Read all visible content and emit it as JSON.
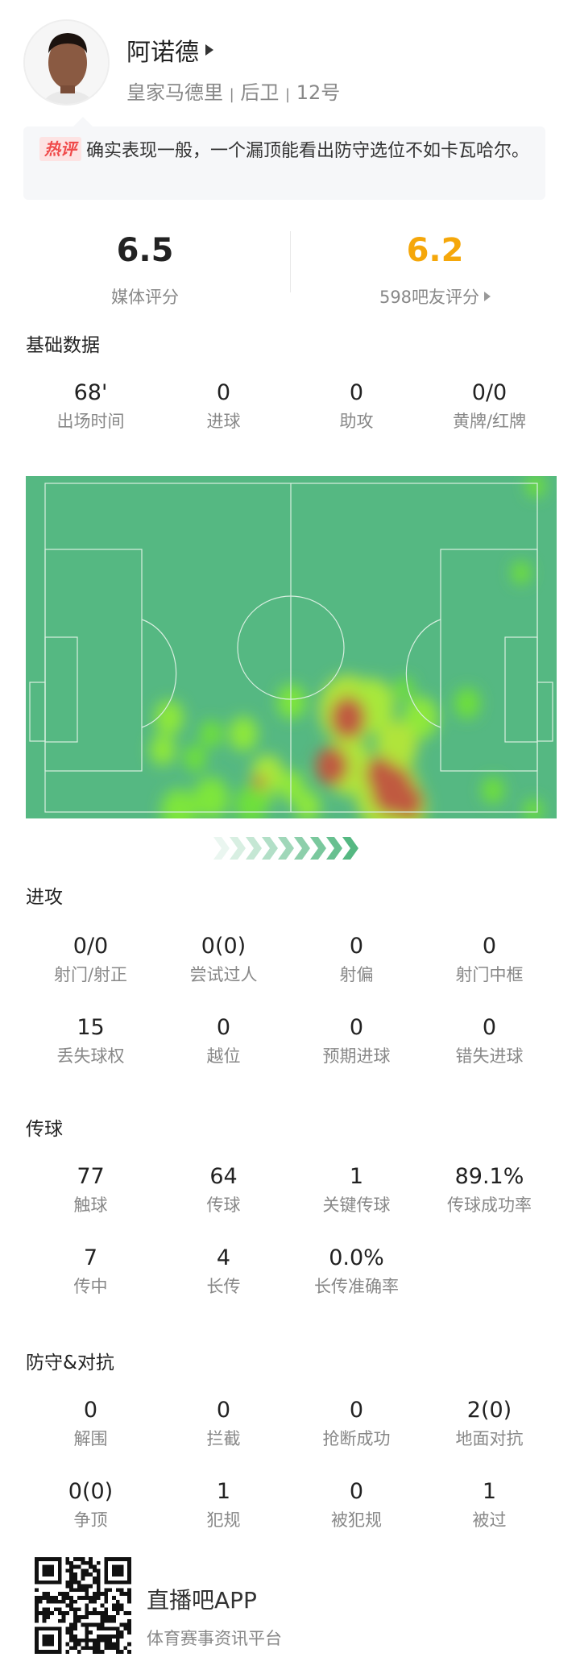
{
  "player": {
    "name": "阿诺德",
    "team": "皇家马德里",
    "position": "后卫",
    "number": "12号",
    "sep": "|"
  },
  "comment": {
    "badge": "热评",
    "text": "确实表现一般，一个漏顶能看出防守选位不如卡瓦哈尔。"
  },
  "ratings": {
    "media": {
      "value": "6.5",
      "label": "媒体评分"
    },
    "fans": {
      "value": "6.2",
      "label": "598吧友评分",
      "color": "#f5a70a"
    }
  },
  "basic": {
    "title": "基础数据",
    "items": [
      {
        "value": "68'",
        "label": "出场时间"
      },
      {
        "value": "0",
        "label": "进球"
      },
      {
        "value": "0",
        "label": "助攻"
      },
      {
        "value": "0/0",
        "label": "黄牌/红牌"
      }
    ]
  },
  "heatmap": {
    "pitch_color": "#55b882",
    "line_color": "#d8efe0",
    "direction": "attack-right-arrows"
  },
  "attack": {
    "title": "进攻",
    "items": [
      {
        "value": "0/0",
        "label": "射门/射正"
      },
      {
        "value": "0(0)",
        "label": "尝试过人"
      },
      {
        "value": "0",
        "label": "射偏"
      },
      {
        "value": "0",
        "label": "射门中框"
      },
      {
        "value": "15",
        "label": "丢失球权"
      },
      {
        "value": "0",
        "label": "越位"
      },
      {
        "value": "0",
        "label": "预期进球"
      },
      {
        "value": "0",
        "label": "错失进球"
      }
    ]
  },
  "passing": {
    "title": "传球",
    "items": [
      {
        "value": "77",
        "label": "触球"
      },
      {
        "value": "64",
        "label": "传球"
      },
      {
        "value": "1",
        "label": "关键传球"
      },
      {
        "value": "89.1%",
        "label": "传球成功率"
      },
      {
        "value": "7",
        "label": "传中"
      },
      {
        "value": "4",
        "label": "长传"
      },
      {
        "value": "0.0%",
        "label": "长传准确率"
      }
    ]
  },
  "defense": {
    "title": "防守&对抗",
    "items": [
      {
        "value": "0",
        "label": "解围"
      },
      {
        "value": "0",
        "label": "拦截"
      },
      {
        "value": "0",
        "label": "抢断成功"
      },
      {
        "value": "2(0)",
        "label": "地面对抗"
      },
      {
        "value": "0(0)",
        "label": "争顶"
      },
      {
        "value": "1",
        "label": "犯规"
      },
      {
        "value": "0",
        "label": "被犯规"
      },
      {
        "value": "1",
        "label": "被过"
      }
    ]
  },
  "footer": {
    "brand": "直播吧APP",
    "tagline": "体育赛事资讯平台"
  }
}
